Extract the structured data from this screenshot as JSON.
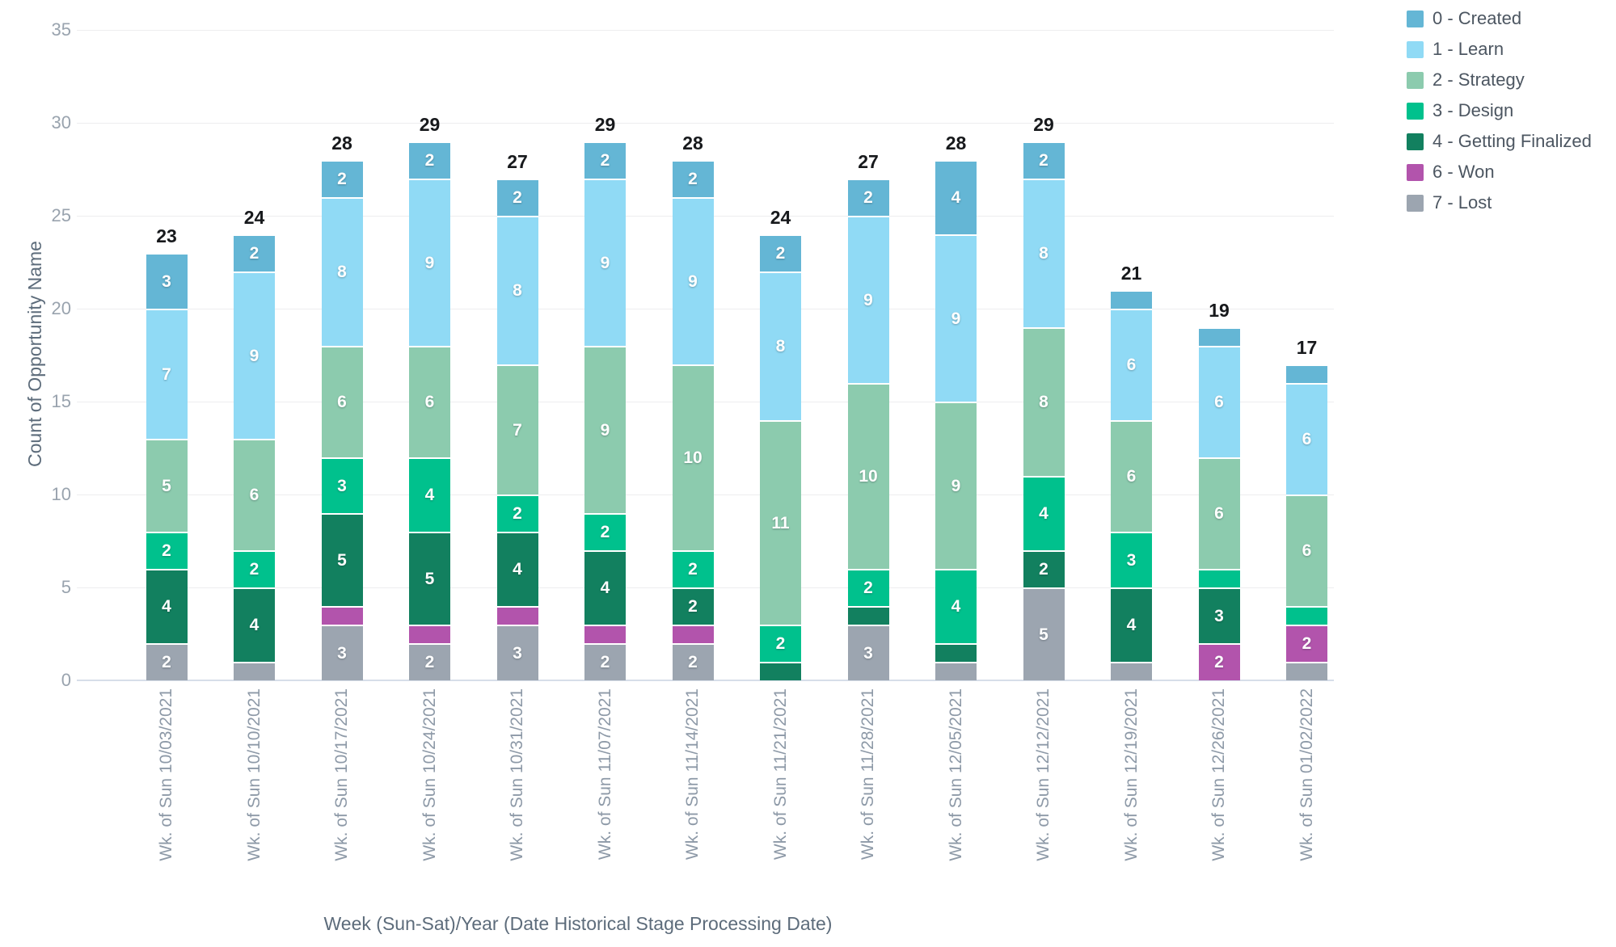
{
  "chart_data": {
    "type": "bar",
    "stacked": true,
    "title": "",
    "xlabel": "Week (Sun-Sat)/Year (Date Historical Stage Processing Date)",
    "ylabel": "Count of Opportunity Name",
    "ylim": [
      0,
      35
    ],
    "yticks": [
      0,
      5,
      10,
      15,
      20,
      25,
      30,
      35
    ],
    "grid": "horizontal",
    "legend_position": "top-right",
    "segment_label_min_value": 2,
    "categories": [
      "Wk. of Sun 10/03/2021",
      "Wk. of Sun 10/10/2021",
      "Wk. of Sun 10/17/2021",
      "Wk. of Sun 10/24/2021",
      "Wk. of Sun 10/31/2021",
      "Wk. of Sun 11/07/2021",
      "Wk. of Sun 11/14/2021",
      "Wk. of Sun 11/21/2021",
      "Wk. of Sun 11/28/2021",
      "Wk. of Sun 12/05/2021",
      "Wk. of Sun 12/12/2021",
      "Wk. of Sun 12/19/2021",
      "Wk. of Sun 12/26/2021",
      "Wk. of Sun 01/02/2022"
    ],
    "totals": [
      23,
      24,
      28,
      29,
      27,
      29,
      28,
      24,
      27,
      28,
      29,
      21,
      19,
      17
    ],
    "series": [
      {
        "name": "0 - Created",
        "color": "#64b6d5",
        "values": [
          3,
          2,
          2,
          2,
          2,
          2,
          2,
          2,
          2,
          4,
          2,
          1,
          1,
          1
        ]
      },
      {
        "name": "1 - Learn",
        "color": "#90daf5",
        "values": [
          7,
          9,
          8,
          9,
          8,
          9,
          9,
          8,
          9,
          9,
          8,
          6,
          6,
          6
        ]
      },
      {
        "name": "2 - Strategy",
        "color": "#8ccbae",
        "values": [
          5,
          6,
          6,
          6,
          7,
          9,
          10,
          11,
          10,
          9,
          8,
          6,
          6,
          6
        ]
      },
      {
        "name": "3 - Design",
        "color": "#00c18d",
        "values": [
          2,
          2,
          3,
          4,
          2,
          2,
          2,
          2,
          2,
          4,
          4,
          3,
          1,
          1
        ]
      },
      {
        "name": "4 - Getting Finalized",
        "color": "#12805f",
        "values": [
          4,
          4,
          5,
          5,
          4,
          4,
          2,
          1,
          1,
          1,
          2,
          4,
          3,
          0
        ]
      },
      {
        "name": "6 - Won",
        "color": "#b254ac",
        "values": [
          0,
          0,
          1,
          1,
          1,
          1,
          1,
          0,
          0,
          0,
          0,
          0,
          2,
          2
        ]
      },
      {
        "name": "7 - Lost",
        "color": "#9ca5b0",
        "values": [
          2,
          1,
          3,
          2,
          3,
          2,
          2,
          0,
          3,
          1,
          5,
          1,
          0,
          1
        ]
      }
    ],
    "stack_order_bottom_to_top": [
      "7 - Lost",
      "6 - Won",
      "4 - Getting Finalized",
      "3 - Design",
      "2 - Strategy",
      "1 - Learn",
      "0 - Created"
    ]
  }
}
